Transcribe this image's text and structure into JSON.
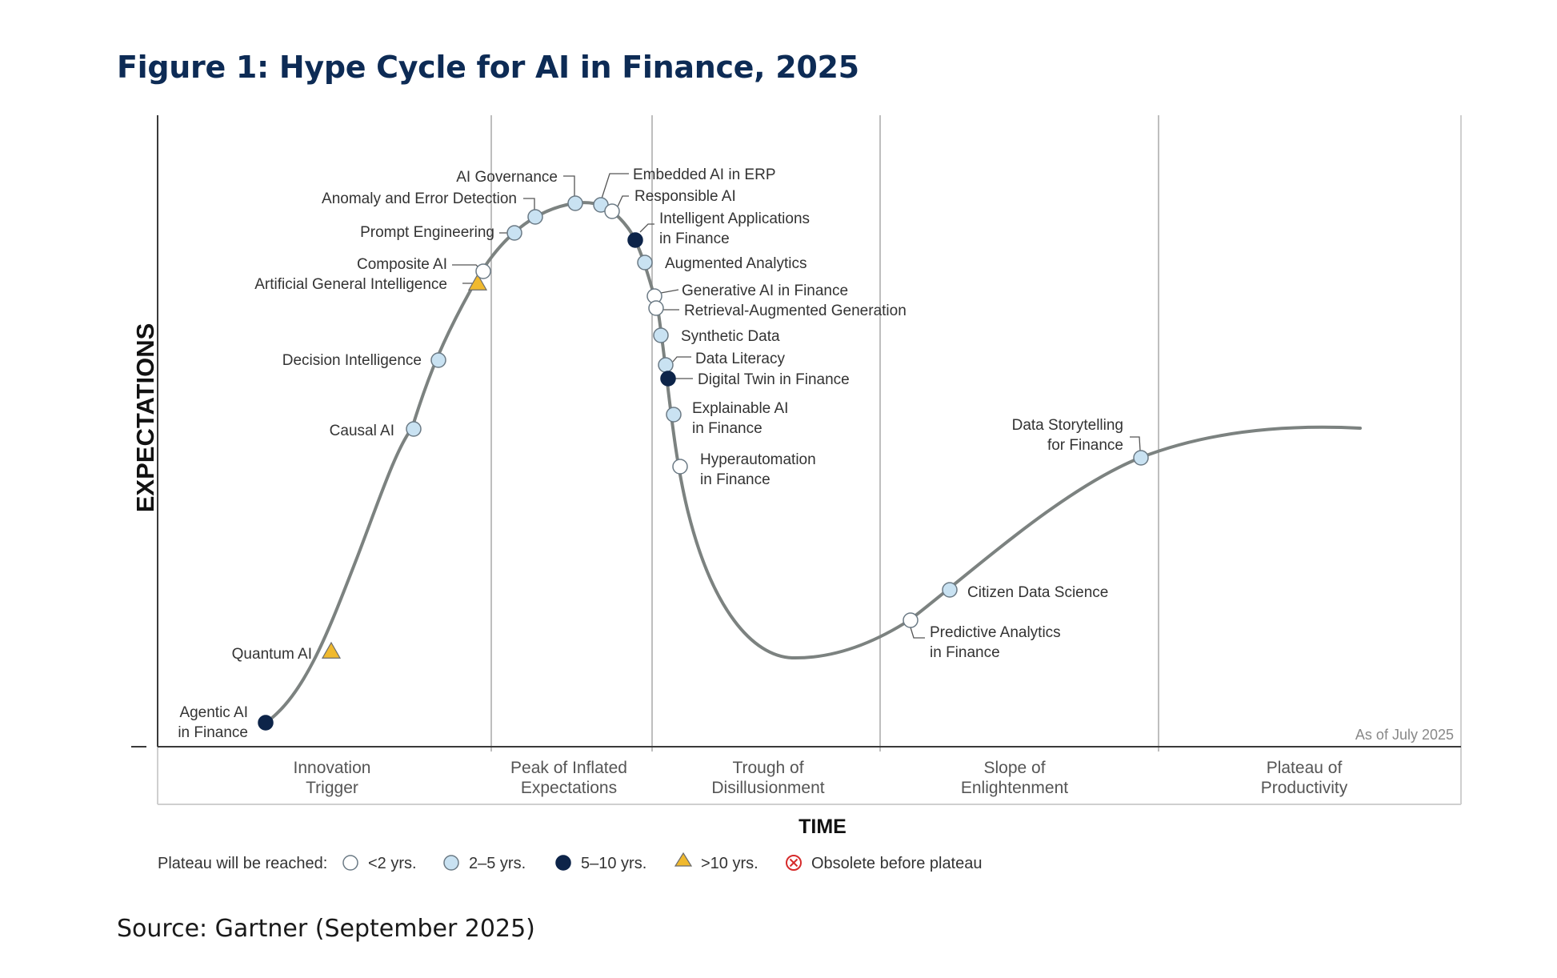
{
  "title": "Figure 1: Hype Cycle for AI in Finance, 2025",
  "source": "Source: Gartner (September 2025)",
  "axis": {
    "y": "EXPECTATIONS",
    "x": "TIME"
  },
  "as_of": "As of July 2025",
  "phases": [
    {
      "line1": "Innovation",
      "line2": "Trigger"
    },
    {
      "line1": "Peak of Inflated",
      "line2": "Expectations"
    },
    {
      "line1": "Trough of",
      "line2": "Disillusionment"
    },
    {
      "line1": "Slope of",
      "line2": "Enlightenment"
    },
    {
      "line1": "Plateau of",
      "line2": "Productivity"
    }
  ],
  "legend": {
    "title": "Plateau will be reached:",
    "items": [
      {
        "key": "lt2",
        "label": "<2 yrs."
      },
      {
        "key": "2to5",
        "label": "2–5 yrs."
      },
      {
        "key": "5to10",
        "label": "5–10 yrs."
      },
      {
        "key": "gt10",
        "label": ">10 yrs."
      },
      {
        "key": "obsolete",
        "label": "Obsolete before plateau"
      }
    ]
  },
  "colors": {
    "title": "#0d2b55",
    "curve": "#7c8280",
    "lt2": "#ffffff",
    "2to5": "#c9e2f2",
    "5to10": "#0d2449",
    "gt10": "#f0b92e",
    "obsolete": "#d62b2b"
  },
  "technologies": [
    {
      "name": "Agentic AI\nin Finance",
      "category": "5to10"
    },
    {
      "name": "Quantum AI",
      "category": "gt10"
    },
    {
      "name": "Causal AI",
      "category": "2to5"
    },
    {
      "name": "Decision Intelligence",
      "category": "2to5"
    },
    {
      "name": "Artificial General Intelligence",
      "category": "gt10"
    },
    {
      "name": "Composite AI",
      "category": "lt2"
    },
    {
      "name": "Prompt Engineering",
      "category": "2to5"
    },
    {
      "name": "Anomaly and Error Detection",
      "category": "2to5"
    },
    {
      "name": "AI Governance",
      "category": "2to5"
    },
    {
      "name": "Embedded AI in ERP",
      "category": "2to5"
    },
    {
      "name": "Responsible AI",
      "category": "lt2"
    },
    {
      "name": "Intelligent Applications\nin Finance",
      "category": "5to10"
    },
    {
      "name": "Augmented Analytics",
      "category": "2to5"
    },
    {
      "name": "Generative AI in Finance",
      "category": "lt2"
    },
    {
      "name": "Retrieval-Augmented Generation",
      "category": "lt2"
    },
    {
      "name": "Synthetic Data",
      "category": "2to5"
    },
    {
      "name": "Data Literacy",
      "category": "2to5"
    },
    {
      "name": "Digital Twin in Finance",
      "category": "5to10"
    },
    {
      "name": "Explainable AI\nin Finance",
      "category": "2to5"
    },
    {
      "name": "Hyperautomation\nin Finance",
      "category": "lt2"
    },
    {
      "name": "Predictive Analytics\nin Finance",
      "category": "lt2"
    },
    {
      "name": "Citizen Data Science",
      "category": "2to5"
    },
    {
      "name": "Data Storytelling\nfor Finance",
      "category": "2to5"
    }
  ]
}
